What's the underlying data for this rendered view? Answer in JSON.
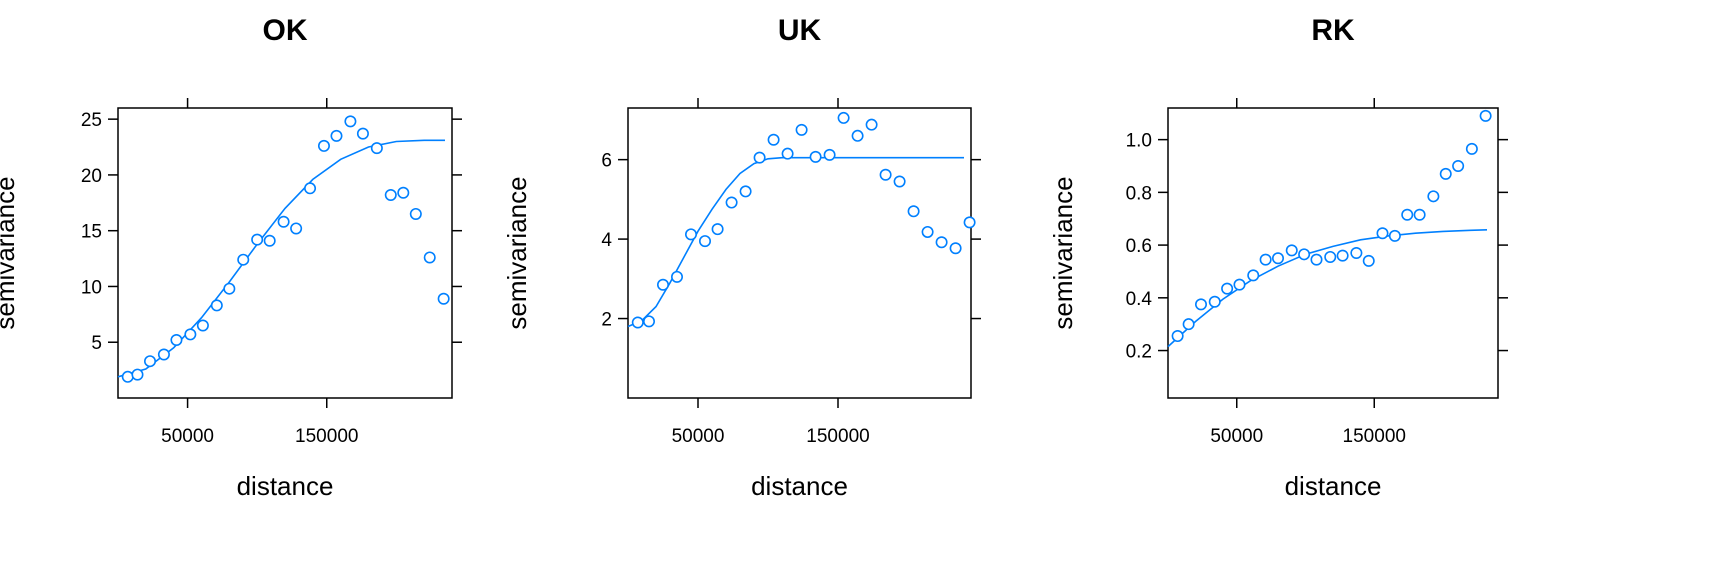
{
  "chart_data": [
    {
      "type": "scatter",
      "title": "OK",
      "xlabel": "distance",
      "ylabel": "semivariance",
      "xlim": [
        0,
        240000
      ],
      "ylim": [
        0,
        26
      ],
      "x_ticks": [
        50000,
        150000
      ],
      "x_tick_labels": [
        "50000",
        "150000"
      ],
      "y_ticks": [
        5,
        10,
        15,
        20,
        25
      ],
      "y_tick_labels": [
        "5",
        "10",
        "15",
        "20",
        "25"
      ],
      "color": "#0080FF",
      "series": [
        {
          "points": [
            [
              7000,
              1.9
            ],
            [
              14000,
              2.1
            ],
            [
              23000,
              3.3
            ],
            [
              33000,
              3.9
            ],
            [
              42000,
              5.2
            ],
            [
              52000,
              5.7
            ],
            [
              61000,
              6.5
            ],
            [
              71000,
              8.3
            ],
            [
              80000,
              9.8
            ],
            [
              90000,
              12.4
            ],
            [
              100000,
              14.2
            ],
            [
              109000,
              14.1
            ],
            [
              119000,
              15.8
            ],
            [
              128000,
              15.2
            ],
            [
              138000,
              18.8
            ],
            [
              148000,
              22.6
            ],
            [
              157000,
              23.5
            ],
            [
              167000,
              24.8
            ],
            [
              176000,
              23.7
            ],
            [
              186000,
              22.4
            ],
            [
              196000,
              18.2
            ],
            [
              205000,
              18.4
            ],
            [
              214000,
              16.5
            ],
            [
              224000,
              12.6
            ],
            [
              234000,
              8.9
            ]
          ],
          "model_curve": [
            [
              0,
              1.9
            ],
            [
              20000,
              2.6
            ],
            [
              40000,
              4.5
            ],
            [
              60000,
              7.2
            ],
            [
              80000,
              10.4
            ],
            [
              100000,
              13.8
            ],
            [
              120000,
              17.0
            ],
            [
              140000,
              19.6
            ],
            [
              160000,
              21.4
            ],
            [
              180000,
              22.5
            ],
            [
              200000,
              23.0
            ],
            [
              220000,
              23.1
            ],
            [
              235000,
              23.1
            ]
          ]
        }
      ]
    },
    {
      "type": "scatter",
      "title": "UK",
      "xlabel": "distance",
      "ylabel": "semivariance",
      "xlim": [
        0,
        245000
      ],
      "ylim": [
        0,
        7.3
      ],
      "x_ticks": [
        50000,
        150000
      ],
      "x_tick_labels": [
        "50000",
        "150000"
      ],
      "y_ticks": [
        2,
        4,
        6
      ],
      "y_tick_labels": [
        "2",
        "4",
        "6"
      ],
      "color": "#0080FF",
      "series": [
        {
          "points": [
            [
              7000,
              1.9
            ],
            [
              15000,
              1.93
            ],
            [
              25000,
              2.85
            ],
            [
              35000,
              3.05
            ],
            [
              45000,
              4.12
            ],
            [
              55000,
              3.95
            ],
            [
              64000,
              4.25
            ],
            [
              74000,
              4.92
            ],
            [
              84000,
              5.2
            ],
            [
              94000,
              6.05
            ],
            [
              104000,
              6.5
            ],
            [
              114000,
              6.15
            ],
            [
              124000,
              6.75
            ],
            [
              134000,
              6.07
            ],
            [
              144000,
              6.12
            ],
            [
              154000,
              7.05
            ],
            [
              164000,
              6.6
            ],
            [
              174000,
              6.88
            ],
            [
              184000,
              5.62
            ],
            [
              194000,
              5.45
            ],
            [
              204000,
              4.7
            ],
            [
              214000,
              4.18
            ],
            [
              224000,
              3.92
            ],
            [
              234000,
              3.77
            ],
            [
              244000,
              4.42
            ]
          ],
          "model_curve": [
            [
              0,
              1.8
            ],
            [
              10000,
              1.95
            ],
            [
              20000,
              2.3
            ],
            [
              30000,
              2.9
            ],
            [
              40000,
              3.55
            ],
            [
              50000,
              4.2
            ],
            [
              60000,
              4.75
            ],
            [
              70000,
              5.25
            ],
            [
              80000,
              5.65
            ],
            [
              90000,
              5.9
            ],
            [
              100000,
              6.02
            ],
            [
              110000,
              6.05
            ],
            [
              130000,
              6.05
            ],
            [
              180000,
              6.05
            ],
            [
              240000,
              6.05
            ]
          ]
        }
      ]
    },
    {
      "type": "scatter",
      "title": "RK",
      "xlabel": "distance",
      "ylabel": "semivariance",
      "xlim": [
        0,
        240000
      ],
      "ylim": [
        0.02,
        1.12
      ],
      "x_ticks": [
        50000,
        150000
      ],
      "x_tick_labels": [
        "50000",
        "150000"
      ],
      "y_ticks": [
        0.2,
        0.4,
        0.6,
        0.8,
        1.0
      ],
      "y_tick_labels": [
        "0.2",
        "0.4",
        "0.6",
        "0.8",
        "1.0"
      ],
      "color": "#0080FF",
      "series": [
        {
          "points": [
            [
              7000,
              0.255
            ],
            [
              15000,
              0.3
            ],
            [
              24000,
              0.375
            ],
            [
              34000,
              0.385
            ],
            [
              43000,
              0.435
            ],
            [
              52000,
              0.45
            ],
            [
              62000,
              0.485
            ],
            [
              71000,
              0.545
            ],
            [
              80000,
              0.55
            ],
            [
              90000,
              0.58
            ],
            [
              99000,
              0.565
            ],
            [
              108000,
              0.545
            ],
            [
              118000,
              0.555
            ],
            [
              127000,
              0.56
            ],
            [
              137000,
              0.57
            ],
            [
              146000,
              0.54
            ],
            [
              156000,
              0.645
            ],
            [
              165000,
              0.635
            ],
            [
              174000,
              0.715
            ],
            [
              183000,
              0.715
            ],
            [
              193000,
              0.785
            ],
            [
              202000,
              0.87
            ],
            [
              211000,
              0.9
            ],
            [
              221000,
              0.965
            ],
            [
              231000,
              1.09
            ]
          ],
          "model_curve": [
            [
              0,
              0.215
            ],
            [
              20000,
              0.31
            ],
            [
              40000,
              0.395
            ],
            [
              60000,
              0.465
            ],
            [
              80000,
              0.52
            ],
            [
              100000,
              0.565
            ],
            [
              120000,
              0.595
            ],
            [
              140000,
              0.62
            ],
            [
              160000,
              0.635
            ],
            [
              180000,
              0.645
            ],
            [
              200000,
              0.652
            ],
            [
              220000,
              0.656
            ],
            [
              232000,
              0.658
            ]
          ]
        }
      ]
    }
  ]
}
